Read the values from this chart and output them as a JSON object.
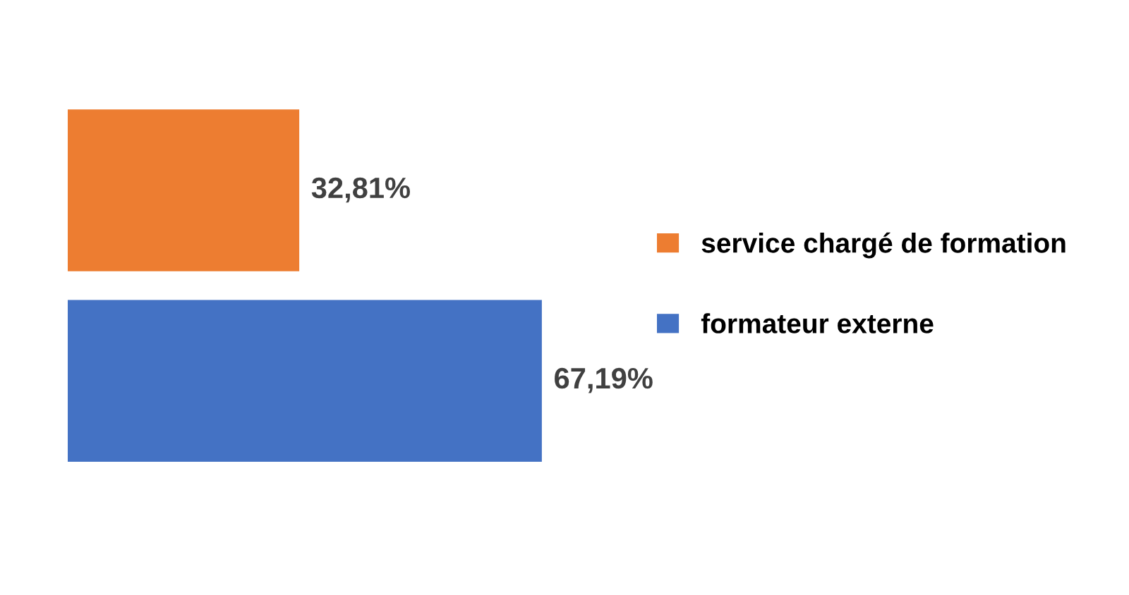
{
  "chart_data": {
    "type": "bar",
    "orientation": "horizontal",
    "categories": [
      null
    ],
    "series": [
      {
        "name": "service chargé de formation",
        "color": "#ed7d31",
        "values": [
          32.81
        ],
        "value_labels": [
          "32,81%"
        ]
      },
      {
        "name": "formateur externe",
        "color": "#4472c4",
        "values": [
          67.19
        ],
        "value_labels": [
          "67,19%"
        ]
      }
    ],
    "legend": "right",
    "tick_labels": false
  }
}
